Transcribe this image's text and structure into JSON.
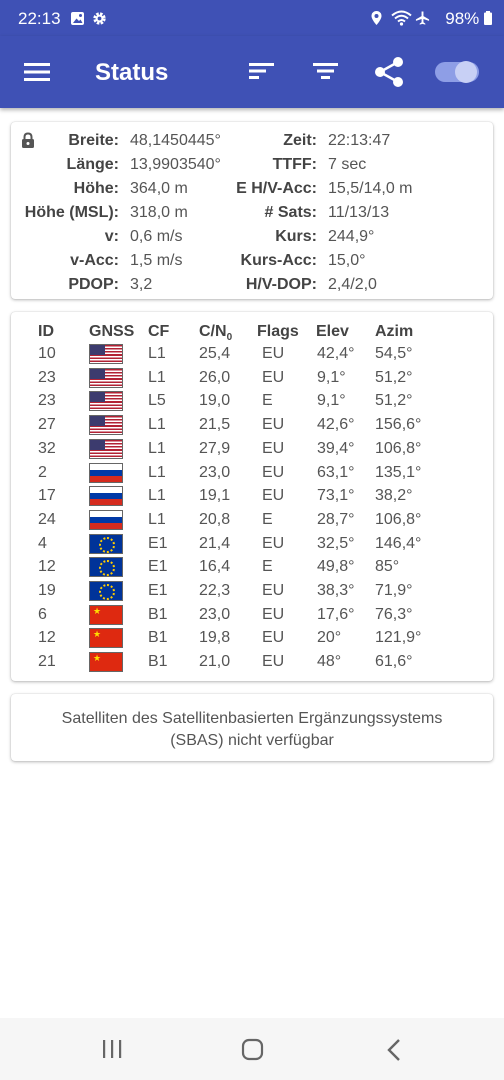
{
  "status_bar": {
    "time": "22:13",
    "battery": "98%"
  },
  "app_bar": {
    "title": "Status"
  },
  "location": {
    "left": [
      {
        "label": "Breite:",
        "value": "48,1450445°"
      },
      {
        "label": "Länge:",
        "value": "13,9903540°"
      },
      {
        "label": "Höhe:",
        "value": "364,0 m"
      },
      {
        "label": "Höhe (MSL):",
        "value": "318,0 m"
      },
      {
        "label": "v:",
        "value": "0,6 m/s"
      },
      {
        "label": "v-Acc:",
        "value": "1,5 m/s"
      },
      {
        "label": "PDOP:",
        "value": "3,2"
      }
    ],
    "right": [
      {
        "label": "Zeit:",
        "value": "22:13:47"
      },
      {
        "label": "TTFF:",
        "value": "7 sec"
      },
      {
        "label": "E H/V-Acc:",
        "value": "15,5/14,0 m"
      },
      {
        "label": "# Sats:",
        "value": "11/13/13"
      },
      {
        "label": "Kurs:",
        "value": "244,9°"
      },
      {
        "label": "Kurs-Acc:",
        "value": "15,0°"
      },
      {
        "label": "H/V-DOP:",
        "value": "2,4/2,0"
      }
    ]
  },
  "sat_table": {
    "headers": {
      "id": "ID",
      "gnss": "GNSS",
      "cf": "CF",
      "cn0": "C/N",
      "cn0_sub": "0",
      "flags": "Flags",
      "elev": "Elev",
      "azim": "Azim"
    },
    "rows": [
      {
        "id": "10",
        "gnss": "us",
        "cf": "L1",
        "cn0": "25,4",
        "flags": "EU",
        "elev": "42,4°",
        "azim": "54,5°"
      },
      {
        "id": "23",
        "gnss": "us",
        "cf": "L1",
        "cn0": "26,0",
        "flags": "EU",
        "elev": "9,1°",
        "azim": "51,2°"
      },
      {
        "id": "23",
        "gnss": "us",
        "cf": "L5",
        "cn0": "19,0",
        "flags": "E",
        "elev": "9,1°",
        "azim": "51,2°"
      },
      {
        "id": "27",
        "gnss": "us",
        "cf": "L1",
        "cn0": "21,5",
        "flags": "EU",
        "elev": "42,6°",
        "azim": "156,6°"
      },
      {
        "id": "32",
        "gnss": "us",
        "cf": "L1",
        "cn0": "27,9",
        "flags": "EU",
        "elev": "39,4°",
        "azim": "106,8°"
      },
      {
        "id": "2",
        "gnss": "ru",
        "cf": "L1",
        "cn0": "23,0",
        "flags": "EU",
        "elev": "63,1°",
        "azim": "135,1°"
      },
      {
        "id": "17",
        "gnss": "ru",
        "cf": "L1",
        "cn0": "19,1",
        "flags": "EU",
        "elev": "73,1°",
        "azim": "38,2°"
      },
      {
        "id": "24",
        "gnss": "ru",
        "cf": "L1",
        "cn0": "20,8",
        "flags": "E",
        "elev": "28,7°",
        "azim": "106,8°"
      },
      {
        "id": "4",
        "gnss": "eu",
        "cf": "E1",
        "cn0": "21,4",
        "flags": "EU",
        "elev": "32,5°",
        "azim": "146,4°"
      },
      {
        "id": "12",
        "gnss": "eu",
        "cf": "E1",
        "cn0": "16,4",
        "flags": "E",
        "elev": "49,8°",
        "azim": "85°"
      },
      {
        "id": "19",
        "gnss": "eu",
        "cf": "E1",
        "cn0": "22,3",
        "flags": "EU",
        "elev": "38,3°",
        "azim": "71,9°"
      },
      {
        "id": "6",
        "gnss": "cn",
        "cf": "B1",
        "cn0": "23,0",
        "flags": "EU",
        "elev": "17,6°",
        "azim": "76,3°"
      },
      {
        "id": "12",
        "gnss": "cn",
        "cf": "B1",
        "cn0": "19,8",
        "flags": "EU",
        "elev": "20°",
        "azim": "121,9°"
      },
      {
        "id": "21",
        "gnss": "cn",
        "cf": "B1",
        "cn0": "21,0",
        "flags": "EU",
        "elev": "48°",
        "azim": "61,6°"
      }
    ]
  },
  "sbas": {
    "line1": "Satelliten des Satellitenbasierten Ergänzungssystems",
    "line2": "(SBAS) nicht verfügbar"
  },
  "colors": {
    "app_bar": "#3f51b5",
    "text": "#555555"
  },
  "icons": [
    "image-icon",
    "settings-icon",
    "location-icon",
    "wifi-icon",
    "airplane-icon",
    "battery-icon",
    "menu-icon",
    "sort-icon",
    "filter-icon",
    "share-icon",
    "toggle-switch",
    "lock-icon",
    "recent-apps-icon",
    "home-icon",
    "back-icon"
  ]
}
